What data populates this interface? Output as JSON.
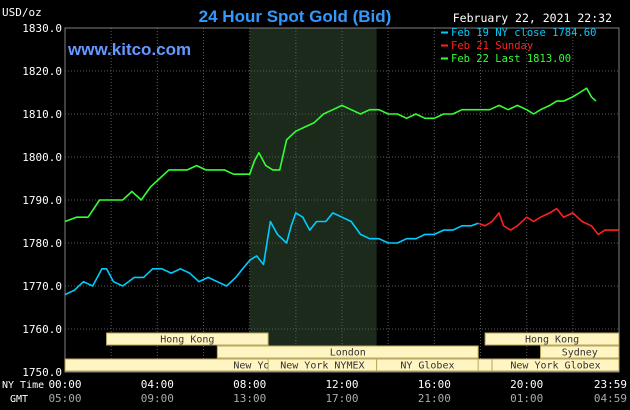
{
  "chart_data": {
    "type": "line",
    "title": "24 Hour Spot Gold (Bid)",
    "watermark": "www.kitco.com",
    "unit_label": "USD/oz",
    "timestamp": "February 22, 2021 22:32",
    "ylim": [
      1750,
      1830
    ],
    "yticks": [
      "1830.0",
      "1820.0",
      "1810.0",
      "1800.0",
      "1790.0",
      "1780.0",
      "1770.0",
      "1760.0",
      "1750.0"
    ],
    "ytick_values": [
      1830,
      1820,
      1810,
      1800,
      1790,
      1780,
      1770,
      1760,
      1750
    ],
    "xlim": [
      0,
      24
    ],
    "xticks_ny": [
      "00:00",
      "04:00",
      "08:00",
      "12:00",
      "16:00",
      "20:00",
      "23:59"
    ],
    "xticks_gmt": [
      "05:00",
      "09:00",
      "13:00",
      "17:00",
      "21:00",
      "01:00",
      "04:59"
    ],
    "xtick_hours": [
      0,
      4,
      8,
      12,
      16,
      20,
      23.983
    ],
    "row_labels": {
      "ny": "NY Time",
      "gmt": "GMT"
    },
    "grid": true,
    "shaded_window": [
      8,
      13.5
    ],
    "legend": {
      "placement": "top-right",
      "entries": [
        {
          "label": "Feb 19 NY close 1784.60",
          "color": "#00ccff"
        },
        {
          "label": "Feb 21 Sunday",
          "color": "#ff2020"
        },
        {
          "label": "Feb 22 Last 1813.00",
          "color": "#33ff33"
        }
      ]
    },
    "sessions": [
      {
        "label": "Hong Kong",
        "start": 1.8,
        "end": 8.8,
        "row": 0
      },
      {
        "label": "Hong Kong",
        "start": 18.2,
        "end": 24,
        "row": 0
      },
      {
        "label": "London",
        "start": 6.6,
        "end": 17.9,
        "row": 1
      },
      {
        "label": "Sydney",
        "start": 20.6,
        "end": 24,
        "row": 1
      },
      {
        "label": "New York Globex",
        "start": 0,
        "end": 18.5,
        "row": 2
      },
      {
        "label": "New York NYMEX",
        "start": 8.8,
        "end": 13.5,
        "row": 2
      },
      {
        "label": "NY Globex",
        "start": 13.5,
        "end": 17.9,
        "row": 2
      },
      {
        "label": "New York Globex",
        "start": 18.5,
        "end": 24,
        "row": 2
      }
    ],
    "series": [
      {
        "name": "Feb 19 NY close 1784.60",
        "color": "#00ccff",
        "points": [
          [
            0,
            1768
          ],
          [
            0.4,
            1769
          ],
          [
            0.8,
            1771
          ],
          [
            1.2,
            1770
          ],
          [
            1.6,
            1774
          ],
          [
            1.8,
            1774
          ],
          [
            2.1,
            1771
          ],
          [
            2.5,
            1770
          ],
          [
            3.0,
            1772
          ],
          [
            3.4,
            1772
          ],
          [
            3.8,
            1774
          ],
          [
            4.2,
            1774
          ],
          [
            4.6,
            1773
          ],
          [
            5.0,
            1774
          ],
          [
            5.4,
            1773
          ],
          [
            5.8,
            1771
          ],
          [
            6.2,
            1772
          ],
          [
            6.6,
            1771
          ],
          [
            7.0,
            1770
          ],
          [
            7.4,
            1772
          ],
          [
            7.7,
            1774
          ],
          [
            8.0,
            1776
          ],
          [
            8.3,
            1777
          ],
          [
            8.6,
            1775
          ],
          [
            8.9,
            1785
          ],
          [
            9.2,
            1782
          ],
          [
            9.6,
            1780
          ],
          [
            9.8,
            1784
          ],
          [
            10.0,
            1787
          ],
          [
            10.3,
            1786
          ],
          [
            10.6,
            1783
          ],
          [
            10.9,
            1785
          ],
          [
            11.3,
            1785
          ],
          [
            11.6,
            1787
          ],
          [
            12.0,
            1786
          ],
          [
            12.4,
            1785
          ],
          [
            12.8,
            1782
          ],
          [
            13.2,
            1781
          ],
          [
            13.6,
            1781
          ],
          [
            14.0,
            1780
          ],
          [
            14.4,
            1780
          ],
          [
            14.8,
            1781
          ],
          [
            15.2,
            1781
          ],
          [
            15.6,
            1782
          ],
          [
            16.0,
            1782
          ],
          [
            16.4,
            1783
          ],
          [
            16.8,
            1783
          ],
          [
            17.2,
            1784
          ],
          [
            17.6,
            1784
          ],
          [
            17.9,
            1784.6
          ]
        ]
      },
      {
        "name": "Feb 21 Sunday",
        "color": "#ff2020",
        "points": [
          [
            17.9,
            1784.6
          ],
          [
            18.2,
            1784
          ],
          [
            18.5,
            1785
          ],
          [
            18.8,
            1787
          ],
          [
            19.0,
            1784
          ],
          [
            19.3,
            1783
          ],
          [
            19.6,
            1784
          ],
          [
            20.0,
            1786
          ],
          [
            20.3,
            1785
          ],
          [
            20.6,
            1786
          ],
          [
            21.0,
            1787
          ],
          [
            21.3,
            1788
          ],
          [
            21.6,
            1786
          ],
          [
            22.0,
            1787
          ],
          [
            22.4,
            1785
          ],
          [
            22.8,
            1784
          ],
          [
            23.1,
            1782
          ],
          [
            23.4,
            1783
          ],
          [
            23.7,
            1783
          ],
          [
            24.0,
            1783
          ]
        ]
      },
      {
        "name": "Feb 22 Last 1813.00",
        "color": "#33ff33",
        "points": [
          [
            0,
            1785
          ],
          [
            0.5,
            1786
          ],
          [
            1.0,
            1786
          ],
          [
            1.5,
            1790
          ],
          [
            2.0,
            1790
          ],
          [
            2.5,
            1790
          ],
          [
            2.9,
            1792
          ],
          [
            3.3,
            1790
          ],
          [
            3.7,
            1793
          ],
          [
            4.1,
            1795
          ],
          [
            4.5,
            1797
          ],
          [
            4.9,
            1797
          ],
          [
            5.3,
            1797
          ],
          [
            5.7,
            1798
          ],
          [
            6.1,
            1797
          ],
          [
            6.5,
            1797
          ],
          [
            6.9,
            1797
          ],
          [
            7.3,
            1796
          ],
          [
            7.7,
            1796
          ],
          [
            8.0,
            1796
          ],
          [
            8.2,
            1799
          ],
          [
            8.4,
            1801
          ],
          [
            8.7,
            1798
          ],
          [
            9.0,
            1797
          ],
          [
            9.3,
            1797
          ],
          [
            9.6,
            1804
          ],
          [
            10.0,
            1806
          ],
          [
            10.4,
            1807
          ],
          [
            10.8,
            1808
          ],
          [
            11.2,
            1810
          ],
          [
            11.6,
            1811
          ],
          [
            12.0,
            1812
          ],
          [
            12.4,
            1811
          ],
          [
            12.8,
            1810
          ],
          [
            13.2,
            1811
          ],
          [
            13.6,
            1811
          ],
          [
            14.0,
            1810
          ],
          [
            14.4,
            1810
          ],
          [
            14.8,
            1809
          ],
          [
            15.2,
            1810
          ],
          [
            15.6,
            1809
          ],
          [
            16.0,
            1809
          ],
          [
            16.4,
            1810
          ],
          [
            16.8,
            1810
          ],
          [
            17.2,
            1811
          ],
          [
            17.6,
            1811
          ],
          [
            18.0,
            1811
          ],
          [
            18.4,
            1811
          ],
          [
            18.8,
            1812
          ],
          [
            19.2,
            1811
          ],
          [
            19.6,
            1812
          ],
          [
            20.0,
            1811
          ],
          [
            20.3,
            1810
          ],
          [
            20.6,
            1811
          ],
          [
            21.0,
            1812
          ],
          [
            21.3,
            1813
          ],
          [
            21.6,
            1813
          ],
          [
            22.0,
            1814
          ],
          [
            22.3,
            1815
          ],
          [
            22.6,
            1816
          ],
          [
            22.8,
            1814
          ],
          [
            23.0,
            1813
          ]
        ]
      }
    ]
  },
  "colors": {
    "background": "#000000",
    "plot_background": "#000000",
    "grid": "#5a5a5a",
    "shade": "#1b2a1b",
    "axis_text": "#ffffff",
    "title": "#3399ff",
    "watermark": "#6699ff",
    "session_fill": "#fff5c2",
    "session_stroke": "#b8a860",
    "session_text": "#333333"
  }
}
